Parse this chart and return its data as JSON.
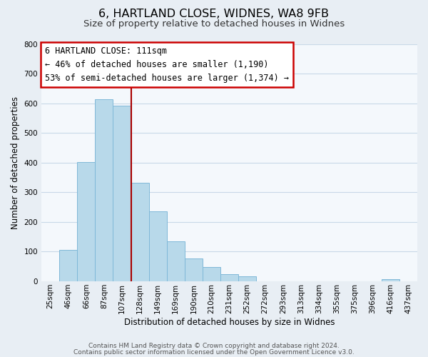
{
  "title": "6, HARTLAND CLOSE, WIDNES, WA8 9FB",
  "subtitle": "Size of property relative to detached houses in Widnes",
  "xlabel": "Distribution of detached houses by size in Widnes",
  "ylabel": "Number of detached properties",
  "categories": [
    "25sqm",
    "46sqm",
    "66sqm",
    "87sqm",
    "107sqm",
    "128sqm",
    "149sqm",
    "169sqm",
    "190sqm",
    "210sqm",
    "231sqm",
    "252sqm",
    "272sqm",
    "293sqm",
    "313sqm",
    "334sqm",
    "355sqm",
    "375sqm",
    "396sqm",
    "416sqm",
    "437sqm"
  ],
  "values": [
    0,
    107,
    403,
    614,
    592,
    332,
    236,
    136,
    76,
    49,
    25,
    16,
    0,
    0,
    0,
    0,
    0,
    0,
    0,
    8,
    0
  ],
  "bar_color": "#b8d9ea",
  "bar_edge_color": "#7fb8d8",
  "vline_color": "#aa0000",
  "vline_x_index": 4,
  "annotation_line1": "6 HARTLAND CLOSE: 111sqm",
  "annotation_line2": "← 46% of detached houses are smaller (1,190)",
  "annotation_line3": "53% of semi-detached houses are larger (1,374) →",
  "ylim": [
    0,
    800
  ],
  "yticks": [
    0,
    100,
    200,
    300,
    400,
    500,
    600,
    700,
    800
  ],
  "footer_line1": "Contains HM Land Registry data © Crown copyright and database right 2024.",
  "footer_line2": "Contains public sector information licensed under the Open Government Licence v3.0.",
  "background_color": "#e8eef4",
  "plot_bg_color": "#f4f8fc",
  "grid_color": "#c8d8e8",
  "title_fontsize": 11.5,
  "subtitle_fontsize": 9.5,
  "axis_label_fontsize": 8.5,
  "tick_fontsize": 7.5,
  "annotation_fontsize": 8.5,
  "footer_fontsize": 6.5,
  "bar_width": 1.0
}
